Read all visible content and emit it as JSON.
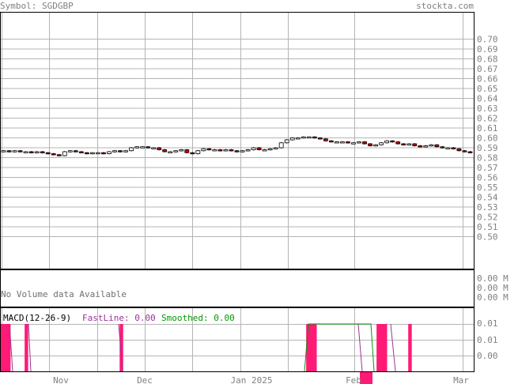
{
  "header": {
    "symbol_label": "Symbol: SGDGBP",
    "brand": "stockta.com"
  },
  "colors": {
    "frame": "#000000",
    "grid": "#b4b4b4",
    "text": "#808080",
    "label": "#707070",
    "up_fill": "#ffffff",
    "down_fill": "#cc0000",
    "macd_bar": "#ff1a75",
    "fastline": "#993399",
    "smoothed": "#009900"
  },
  "volume_panel": {
    "message": "No Volume data Available",
    "axis_labels": [
      "0.00 M",
      "0.00 M",
      "0.00 M"
    ]
  },
  "macd_panel": {
    "title": "MACD(12-26-9)",
    "fastline_label": "FastLine: 0.00",
    "smoothed_label": "Smoothed: 0.00",
    "axis_labels": [
      "0.01",
      "0.01",
      "0.00"
    ]
  },
  "chart_data": {
    "type": "candlestick",
    "ylim": [
      0.49,
      0.705
    ],
    "y_ticks": [
      "0.70",
      "0.69",
      "0.68",
      "0.67",
      "0.66",
      "0.65",
      "0.64",
      "0.63",
      "0.62",
      "0.61",
      "0.60",
      "0.59",
      "0.58",
      "0.57",
      "0.56",
      "0.55",
      "0.54",
      "0.53",
      "0.52",
      "0.51",
      "0.50"
    ],
    "x_ticks": [
      "Nov",
      "Dec",
      "Jan 2025",
      "Feb",
      "Mar"
    ],
    "close_series": [
      0.587,
      0.586,
      0.587,
      0.586,
      0.586,
      0.585,
      0.586,
      0.585,
      0.584,
      0.583,
      0.582,
      0.586,
      0.587,
      0.586,
      0.585,
      0.584,
      0.585,
      0.585,
      0.584,
      0.586,
      0.587,
      0.586,
      0.587,
      0.59,
      0.591,
      0.591,
      0.59,
      0.59,
      0.588,
      0.586,
      0.586,
      0.587,
      0.588,
      0.585,
      0.584,
      0.587,
      0.589,
      0.588,
      0.588,
      0.587,
      0.588,
      0.587,
      0.586,
      0.587,
      0.588,
      0.59,
      0.588,
      0.588,
      0.589,
      0.59,
      0.595,
      0.598,
      0.6,
      0.6,
      0.601,
      0.601,
      0.6,
      0.599,
      0.597,
      0.596,
      0.596,
      0.596,
      0.595,
      0.595,
      0.596,
      0.594,
      0.592,
      0.593,
      0.595,
      0.597,
      0.596,
      0.594,
      0.593,
      0.594,
      0.592,
      0.591,
      0.592,
      0.593,
      0.591,
      0.59,
      0.59,
      0.589,
      0.587,
      0.586,
      0.585
    ],
    "macd_bars": [
      {
        "from": 0,
        "to": 3,
        "level": 0.01
      },
      {
        "from": 7,
        "to": 8,
        "level": 0.01
      },
      {
        "from": 34,
        "to": 35,
        "level": 0.01
      },
      {
        "from": 87,
        "to": 90,
        "level": 0.01
      },
      {
        "from": 107,
        "to": 110,
        "level": 0.01
      },
      {
        "from": 116,
        "to": 117,
        "level": 0.01
      }
    ]
  }
}
